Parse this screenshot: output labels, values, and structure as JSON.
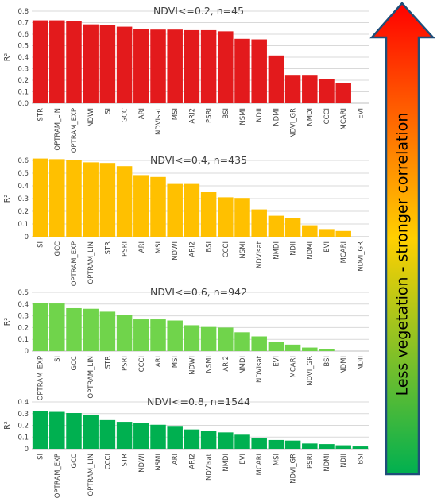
{
  "chart_data": [
    {
      "type": "bar",
      "title": "NDVI<=0.2, n=45",
      "ylabel": "R²",
      "ylim": [
        0,
        0.8
      ],
      "yticks": [
        "0.0",
        "0.1",
        "0.2",
        "0.3",
        "0.4",
        "0.5",
        "0.6",
        "0.7",
        "0.8"
      ],
      "color": "#e31a1c",
      "grid": true,
      "categories": [
        "STR",
        "OPTRAM_LIN",
        "OPTRAM_EXP",
        "NDWI",
        "SI",
        "GCC",
        "ARI",
        "NDVIsat",
        "MSI",
        "ARI2",
        "PSRI",
        "BSI",
        "NSMI",
        "NDII",
        "NDMI",
        "NDVI_GR",
        "NMDI",
        "CCCI",
        "MCARI",
        "EVI"
      ],
      "values": [
        0.72,
        0.72,
        0.715,
        0.685,
        0.68,
        0.665,
        0.645,
        0.64,
        0.64,
        0.635,
        0.635,
        0.625,
        0.56,
        0.555,
        0.415,
        0.24,
        0.24,
        0.21,
        0.175,
        0.0
      ]
    },
    {
      "type": "bar",
      "title": "NDVI<=0.4, n=435",
      "ylabel": "R²",
      "ylim": [
        0,
        0.6
      ],
      "yticks": [
        "0",
        "0.1",
        "0.2",
        "0.3",
        "0.4",
        "0.5",
        "0.6"
      ],
      "color": "#ffc000",
      "grid": true,
      "categories": [
        "SI",
        "GCC",
        "OPTRAM_EXP",
        "OPTRAM_LIN",
        "STR",
        "PSRI",
        "ARI",
        "MSI",
        "NDWI",
        "ARI2",
        "BSI",
        "CCCI",
        "NSMI",
        "NDVIsat",
        "NMDI",
        "NDII",
        "NDMI",
        "EVI",
        "MCARI",
        "NDVI_GR"
      ],
      "values": [
        0.615,
        0.61,
        0.6,
        0.585,
        0.58,
        0.555,
        0.485,
        0.47,
        0.415,
        0.415,
        0.35,
        0.31,
        0.305,
        0.215,
        0.165,
        0.15,
        0.09,
        0.06,
        0.045,
        0.0
      ]
    },
    {
      "type": "bar",
      "title": "NDVI<=0.6, n=942",
      "ylabel": "R²",
      "ylim": [
        0,
        0.5
      ],
      "yticks": [
        "0",
        "0.1",
        "0.2",
        "0.3",
        "0.4",
        "0.5"
      ],
      "color": "#70d44b",
      "grid": true,
      "categories": [
        "OPTRAM_EXP",
        "SI",
        "GCC",
        "OPTRAM_LIN",
        "STR",
        "PSRI",
        "CCCI",
        "ARI",
        "MSI",
        "NDWI",
        "NSMI",
        "ARI2",
        "NMDI",
        "NDVIsat",
        "EVI",
        "MCARI",
        "NDVI_GR",
        "BSI",
        "NDMI",
        "NDII"
      ],
      "values": [
        0.41,
        0.405,
        0.365,
        0.36,
        0.335,
        0.305,
        0.27,
        0.27,
        0.26,
        0.22,
        0.205,
        0.2,
        0.16,
        0.125,
        0.08,
        0.055,
        0.03,
        0.015,
        0.0,
        0.0
      ]
    },
    {
      "type": "bar",
      "title": "NDVI<=0.8, n=1544",
      "ylabel": "R²",
      "ylim": [
        0,
        0.4
      ],
      "yticks": [
        "0",
        "0.1",
        "0.2",
        "0.3",
        "0.4"
      ],
      "color": "#00b050",
      "grid": true,
      "categories": [
        "SI",
        "OPTRAM_EXP",
        "GCC",
        "OPTRAM_LIN",
        "CCCI",
        "STR",
        "NDWI",
        "NSMI",
        "ARI",
        "ARI2",
        "NDVIsat",
        "NMDI",
        "EVI",
        "MCARI",
        "MSI",
        "NDVI_GR",
        "PSRI",
        "NDMI",
        "NDII",
        "BSI"
      ],
      "values": [
        0.32,
        0.315,
        0.305,
        0.29,
        0.245,
        0.23,
        0.22,
        0.205,
        0.195,
        0.165,
        0.155,
        0.14,
        0.12,
        0.09,
        0.075,
        0.07,
        0.045,
        0.04,
        0.03,
        0.02
      ]
    }
  ],
  "arrow": {
    "label": "Less vegetation - stronger correlation",
    "colors": {
      "top": "#ff0000",
      "mid": "#ffd000",
      "bottom": "#00b050",
      "outline": "#1f4e79"
    }
  }
}
